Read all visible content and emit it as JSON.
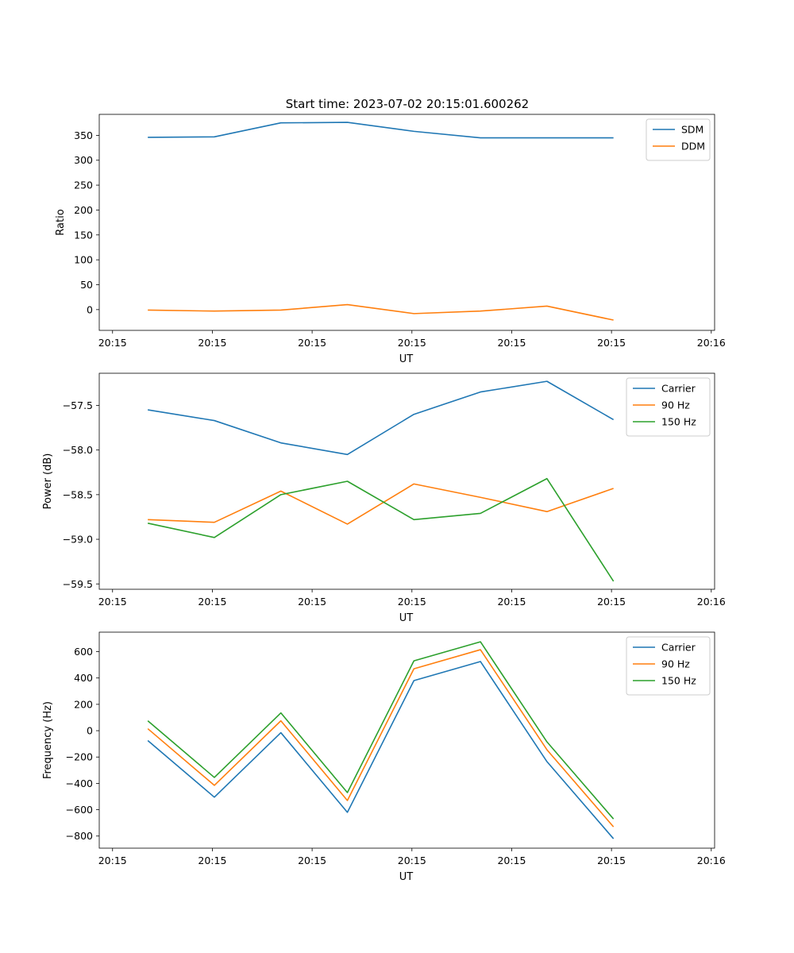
{
  "figure_title": "Start time: 2023-07-02 20:15:01.600262",
  "colors": {
    "c0": "#1f77b4",
    "c1": "#ff7f0e",
    "c2": "#2ca02c"
  },
  "chart_data": [
    {
      "type": "line",
      "title": "Start time: 2023-07-02 20:15:01.600262",
      "xlabel": "UT",
      "ylabel": "Ratio",
      "x": [
        1,
        2,
        3,
        4,
        5,
        6,
        7,
        8
      ],
      "xlim": [
        0.27,
        9.52
      ],
      "ylim": [
        -41.7,
        392.1
      ],
      "x_ticks": [
        0.47,
        1.97,
        3.47,
        4.97,
        6.47,
        7.97,
        9.47
      ],
      "x_tick_labels": [
        "20:15",
        "20:15",
        "20:15",
        "20:15",
        "20:15",
        "20:15",
        "20:16"
      ],
      "y_ticks": [
        0,
        50,
        100,
        150,
        200,
        250,
        300,
        350
      ],
      "y_tick_labels": [
        "0",
        "50",
        "100",
        "150",
        "200",
        "250",
        "300",
        "350"
      ],
      "legend": "top-right",
      "series": [
        {
          "name": "SDM",
          "color": "#1f77b4",
          "values": [
            346,
            347,
            375,
            376,
            358,
            345,
            345,
            345
          ]
        },
        {
          "name": "DDM",
          "color": "#ff7f0e",
          "values": [
            -1,
            -3,
            -1,
            10,
            -8,
            -3,
            7,
            -21
          ]
        }
      ]
    },
    {
      "type": "line",
      "title": "",
      "xlabel": "UT",
      "ylabel": "Power (dB)",
      "x": [
        1,
        2,
        3,
        4,
        5,
        6,
        7,
        8
      ],
      "xlim": [
        0.27,
        9.52
      ],
      "ylim": [
        -59.56,
        -57.14
      ],
      "x_ticks": [
        0.47,
        1.97,
        3.47,
        4.97,
        6.47,
        7.97,
        9.47
      ],
      "x_tick_labels": [
        "20:15",
        "20:15",
        "20:15",
        "20:15",
        "20:15",
        "20:15",
        "20:16"
      ],
      "y_ticks": [
        -57.5,
        -58.0,
        -58.5,
        -59.0,
        -59.5
      ],
      "y_tick_labels": [
        "−57.5",
        "−58.0",
        "−58.5",
        "−59.0",
        "−59.5"
      ],
      "legend": "top-right",
      "series": [
        {
          "name": "Carrier",
          "color": "#1f77b4",
          "values": [
            -57.55,
            -57.67,
            -57.92,
            -58.05,
            -57.6,
            -57.35,
            -57.23,
            -57.66
          ]
        },
        {
          "name": "90 Hz",
          "color": "#ff7f0e",
          "values": [
            -58.78,
            -58.81,
            -58.46,
            -58.83,
            -58.38,
            -58.53,
            -58.69,
            -58.43
          ]
        },
        {
          "name": "150 Hz",
          "color": "#2ca02c",
          "values": [
            -58.82,
            -58.98,
            -58.5,
            -58.35,
            -58.78,
            -58.71,
            -58.32,
            -59.47
          ]
        }
      ]
    },
    {
      "type": "line",
      "title": "",
      "xlabel": "UT",
      "ylabel": "Frequency (Hz)",
      "x": [
        1,
        2,
        3,
        4,
        5,
        6,
        7,
        8
      ],
      "xlim": [
        0.27,
        9.52
      ],
      "ylim": [
        -892,
        748
      ],
      "x_ticks": [
        0.47,
        1.97,
        3.47,
        4.97,
        6.47,
        7.97,
        9.47
      ],
      "x_tick_labels": [
        "20:15",
        "20:15",
        "20:15",
        "20:15",
        "20:15",
        "20:15",
        "20:16"
      ],
      "y_ticks": [
        600,
        400,
        200,
        0,
        -200,
        -400,
        -600,
        -800
      ],
      "y_tick_labels": [
        "600",
        "400",
        "200",
        "0",
        "−200",
        "−400",
        "−600",
        "−800"
      ],
      "legend": "top-right",
      "series": [
        {
          "name": "Carrier",
          "color": "#1f77b4",
          "values": [
            -75,
            -505,
            -15,
            -620,
            380,
            525,
            -235,
            -820
          ]
        },
        {
          "name": "90 Hz",
          "color": "#ff7f0e",
          "values": [
            15,
            -415,
            75,
            -530,
            470,
            615,
            -145,
            -730
          ]
        },
        {
          "name": "150 Hz",
          "color": "#2ca02c",
          "values": [
            75,
            -355,
            135,
            -470,
            530,
            675,
            -85,
            -670
          ]
        }
      ]
    }
  ]
}
